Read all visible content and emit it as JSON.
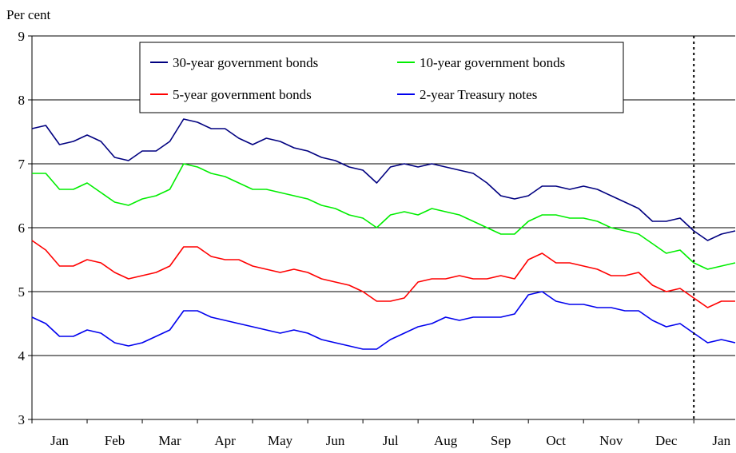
{
  "chart_data": {
    "type": "line",
    "title": "",
    "ylabel": "Per cent",
    "xlabel": "",
    "ylim": [
      3,
      9
    ],
    "yticks": [
      "3",
      "4",
      "5",
      "6",
      "7",
      "8",
      "9"
    ],
    "xticks": [
      "Jan",
      "Feb",
      "Mar",
      "Apr",
      "May",
      "Jun",
      "Jul",
      "Aug",
      "Sep",
      "Oct",
      "Nov",
      "Dec",
      "Jan"
    ],
    "x_range_months": [
      0,
      12.75
    ],
    "vertical_marker_month": 12.0,
    "grid": "horizontal",
    "legend_placement": "top-center",
    "series": [
      {
        "name": "30-year government bonds",
        "color": "#000080",
        "x": [
          0,
          0.25,
          0.5,
          0.75,
          1.0,
          1.25,
          1.5,
          1.75,
          2.0,
          2.25,
          2.5,
          2.75,
          3.0,
          3.25,
          3.5,
          3.75,
          4.0,
          4.25,
          4.5,
          4.75,
          5.0,
          5.25,
          5.5,
          5.75,
          6.0,
          6.25,
          6.5,
          6.75,
          7.0,
          7.25,
          7.5,
          7.75,
          8.0,
          8.25,
          8.5,
          8.75,
          9.0,
          9.25,
          9.5,
          9.75,
          10.0,
          10.25,
          10.5,
          10.75,
          11.0,
          11.25,
          11.5,
          11.75,
          12.0,
          12.25,
          12.5,
          12.75
        ],
        "values": [
          7.55,
          7.6,
          7.3,
          7.35,
          7.45,
          7.35,
          7.1,
          7.05,
          7.2,
          7.2,
          7.35,
          7.7,
          7.65,
          7.55,
          7.55,
          7.4,
          7.3,
          7.4,
          7.35,
          7.25,
          7.2,
          7.1,
          7.05,
          6.95,
          6.9,
          6.7,
          6.95,
          7.0,
          6.95,
          7.0,
          6.95,
          6.9,
          6.85,
          6.7,
          6.5,
          6.45,
          6.5,
          6.65,
          6.65,
          6.6,
          6.65,
          6.6,
          6.5,
          6.4,
          6.3,
          6.1,
          6.1,
          6.15,
          5.95,
          5.8,
          5.9,
          5.95
        ]
      },
      {
        "name": "10-year government bonds",
        "color": "#00ee00",
        "x": [
          0,
          0.25,
          0.5,
          0.75,
          1.0,
          1.25,
          1.5,
          1.75,
          2.0,
          2.25,
          2.5,
          2.75,
          3.0,
          3.25,
          3.5,
          3.75,
          4.0,
          4.25,
          4.5,
          4.75,
          5.0,
          5.25,
          5.5,
          5.75,
          6.0,
          6.25,
          6.5,
          6.75,
          7.0,
          7.25,
          7.5,
          7.75,
          8.0,
          8.25,
          8.5,
          8.75,
          9.0,
          9.25,
          9.5,
          9.75,
          10.0,
          10.25,
          10.5,
          10.75,
          11.0,
          11.25,
          11.5,
          11.75,
          12.0,
          12.25,
          12.5,
          12.75
        ],
        "values": [
          6.85,
          6.85,
          6.6,
          6.6,
          6.7,
          6.55,
          6.4,
          6.35,
          6.45,
          6.5,
          6.6,
          7.0,
          6.95,
          6.85,
          6.8,
          6.7,
          6.6,
          6.6,
          6.55,
          6.5,
          6.45,
          6.35,
          6.3,
          6.2,
          6.15,
          6.0,
          6.2,
          6.25,
          6.2,
          6.3,
          6.25,
          6.2,
          6.1,
          6.0,
          5.9,
          5.9,
          6.1,
          6.2,
          6.2,
          6.15,
          6.15,
          6.1,
          6.0,
          5.95,
          5.9,
          5.75,
          5.6,
          5.65,
          5.45,
          5.35,
          5.4,
          5.45
        ]
      },
      {
        "name": "5-year government bonds",
        "color": "#ff0000",
        "x": [
          0,
          0.25,
          0.5,
          0.75,
          1.0,
          1.25,
          1.5,
          1.75,
          2.0,
          2.25,
          2.5,
          2.75,
          3.0,
          3.25,
          3.5,
          3.75,
          4.0,
          4.25,
          4.5,
          4.75,
          5.0,
          5.25,
          5.5,
          5.75,
          6.0,
          6.25,
          6.5,
          6.75,
          7.0,
          7.25,
          7.5,
          7.75,
          8.0,
          8.25,
          8.5,
          8.75,
          9.0,
          9.25,
          9.5,
          9.75,
          10.0,
          10.25,
          10.5,
          10.75,
          11.0,
          11.25,
          11.5,
          11.75,
          12.0,
          12.25,
          12.5,
          12.75
        ],
        "values": [
          5.8,
          5.65,
          5.4,
          5.4,
          5.5,
          5.45,
          5.3,
          5.2,
          5.25,
          5.3,
          5.4,
          5.7,
          5.7,
          5.55,
          5.5,
          5.5,
          5.4,
          5.35,
          5.3,
          5.35,
          5.3,
          5.2,
          5.15,
          5.1,
          5.0,
          4.85,
          4.85,
          4.9,
          5.15,
          5.2,
          5.2,
          5.25,
          5.2,
          5.2,
          5.25,
          5.2,
          5.5,
          5.6,
          5.45,
          5.45,
          5.4,
          5.35,
          5.25,
          5.25,
          5.3,
          5.1,
          5.0,
          5.05,
          4.9,
          4.75,
          4.85,
          4.85
        ]
      },
      {
        "name": "2-year Treasury notes",
        "color": "#0000ee",
        "x": [
          0,
          0.25,
          0.5,
          0.75,
          1.0,
          1.25,
          1.5,
          1.75,
          2.0,
          2.25,
          2.5,
          2.75,
          3.0,
          3.25,
          3.5,
          3.75,
          4.0,
          4.25,
          4.5,
          4.75,
          5.0,
          5.25,
          5.5,
          5.75,
          6.0,
          6.25,
          6.5,
          6.75,
          7.0,
          7.25,
          7.5,
          7.75,
          8.0,
          8.25,
          8.5,
          8.75,
          9.0,
          9.25,
          9.5,
          9.75,
          10.0,
          10.25,
          10.5,
          10.75,
          11.0,
          11.25,
          11.5,
          11.75,
          12.0,
          12.25,
          12.5,
          12.75
        ],
        "values": [
          4.6,
          4.5,
          4.3,
          4.3,
          4.4,
          4.35,
          4.2,
          4.15,
          4.2,
          4.3,
          4.4,
          4.7,
          4.7,
          4.6,
          4.55,
          4.5,
          4.45,
          4.4,
          4.35,
          4.4,
          4.35,
          4.25,
          4.2,
          4.15,
          4.1,
          4.1,
          4.25,
          4.35,
          4.45,
          4.5,
          4.6,
          4.55,
          4.6,
          4.6,
          4.6,
          4.65,
          4.95,
          5.0,
          4.85,
          4.8,
          4.8,
          4.75,
          4.75,
          4.7,
          4.7,
          4.55,
          4.45,
          4.5,
          4.35,
          4.2,
          4.25,
          4.2
        ]
      }
    ],
    "legend_order": [
      0,
      1,
      2,
      3
    ]
  }
}
